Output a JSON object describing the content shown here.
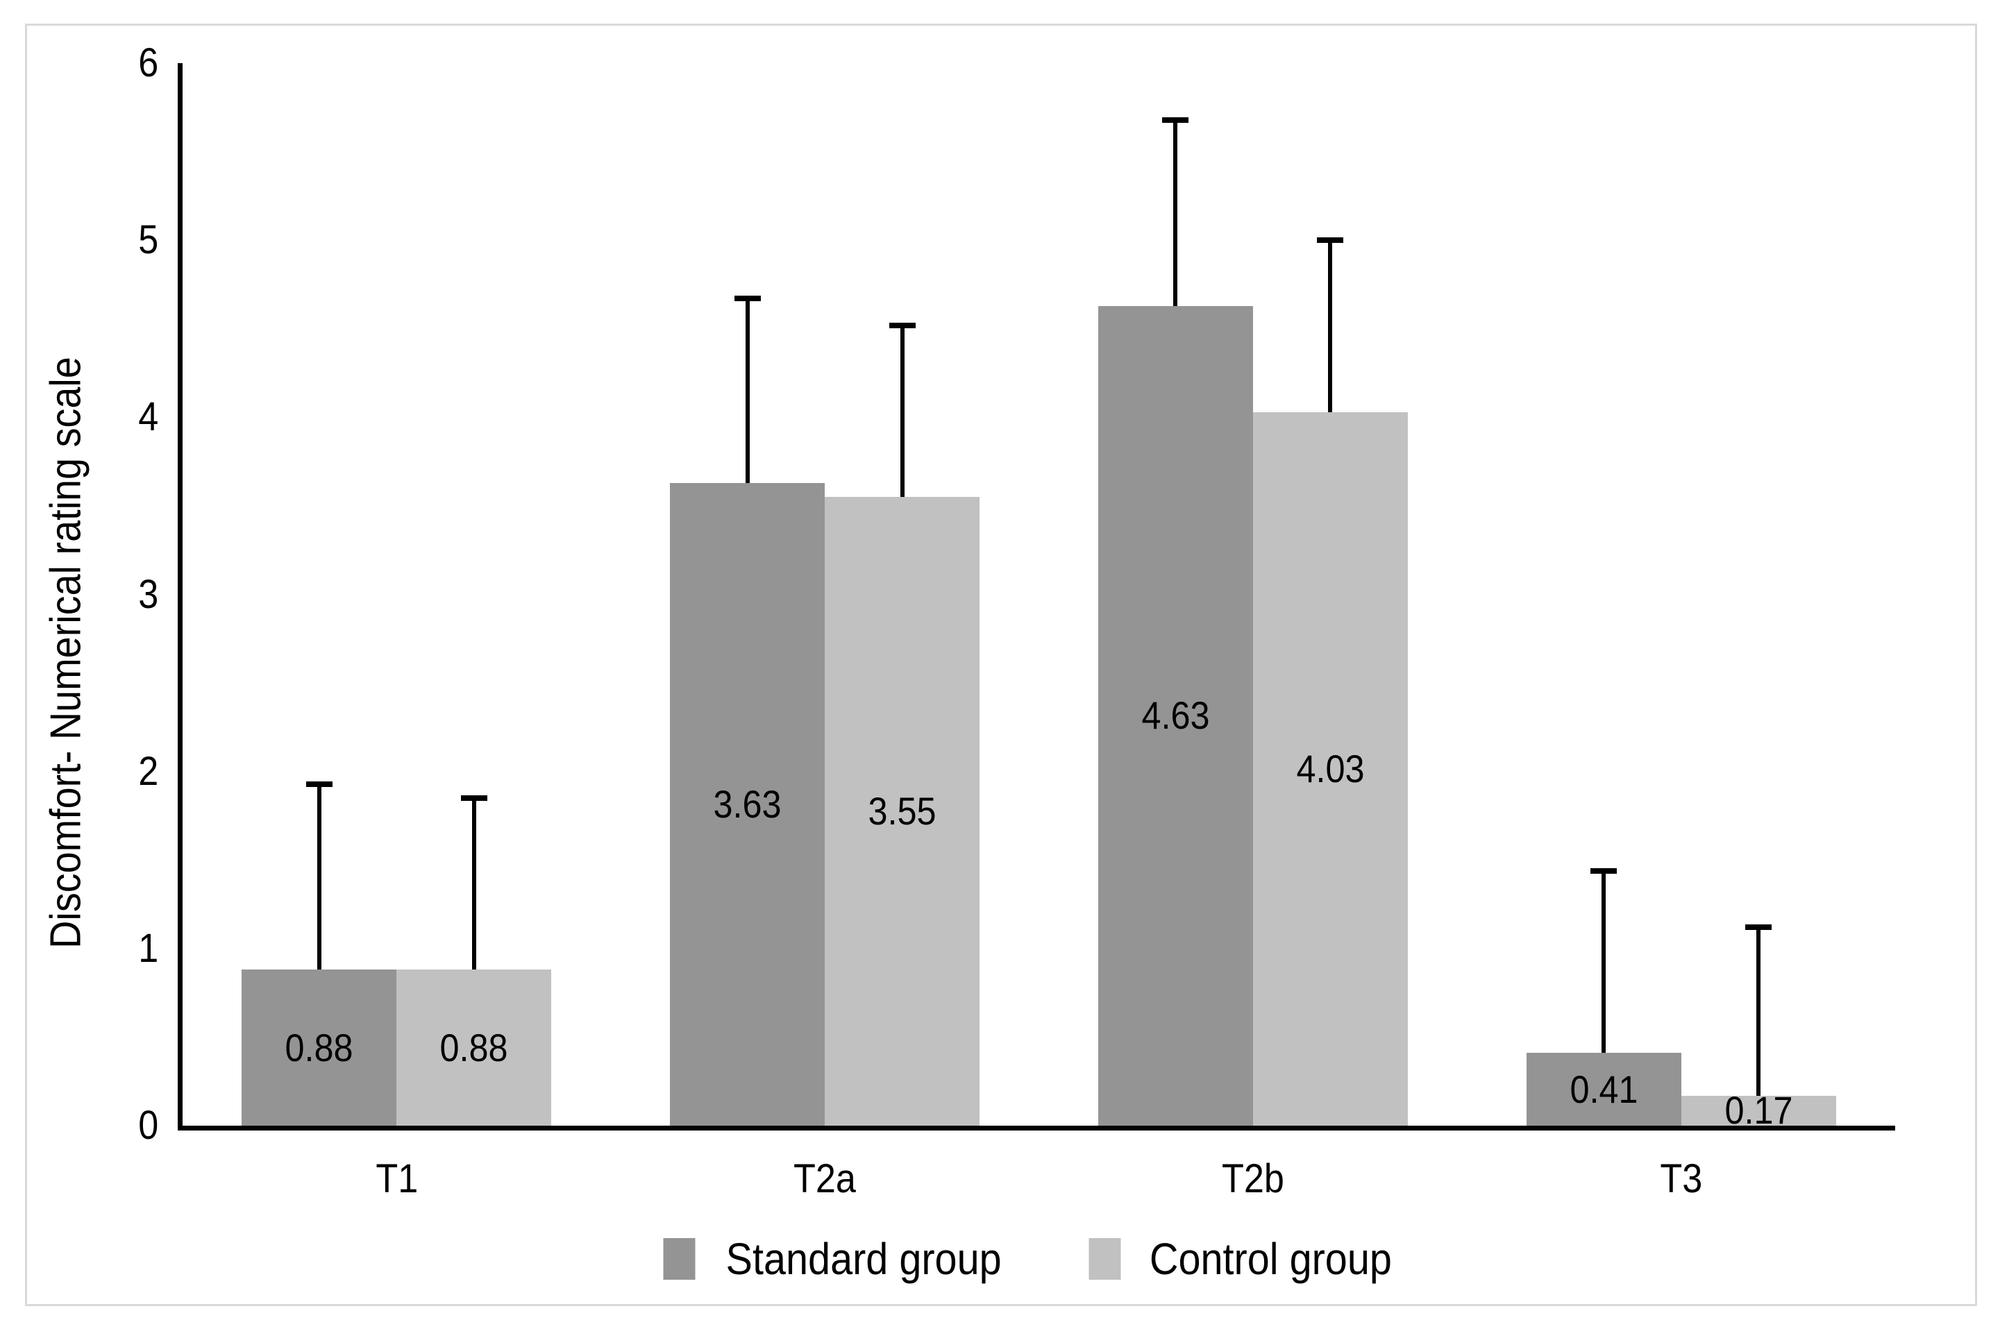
{
  "chart_data": {
    "type": "bar",
    "title": "",
    "ylabel": "Discomfort- Numerical rating scale",
    "xlabel": "",
    "ylim": [
      0,
      6
    ],
    "y_ticks": [
      "0",
      "1",
      "2",
      "3",
      "4",
      "5",
      "6"
    ],
    "grid": false,
    "legend_position": "bottom",
    "error_bars": "upper only, with top cap",
    "categories": [
      "T1",
      "T2a",
      "T2b",
      "T3"
    ],
    "series": [
      {
        "name": "Standard group",
        "color": "#949494",
        "values": [
          0.88,
          3.63,
          4.63,
          0.41
        ],
        "labels": [
          "0.88",
          "3.63",
          "4.63",
          "0.41"
        ],
        "error_top": [
          1.93,
          4.67,
          5.68,
          1.44
        ]
      },
      {
        "name": "Control group",
        "color": "#c1c1c1",
        "values": [
          0.88,
          3.55,
          4.03,
          0.17
        ],
        "labels": [
          "0.88",
          "3.55",
          "4.03",
          "0.17"
        ],
        "error_top": [
          1.85,
          4.52,
          5.0,
          1.12
        ]
      }
    ],
    "axis_color": "#000000",
    "frame_color": "#d9d9d9",
    "background": "#ffffff"
  }
}
